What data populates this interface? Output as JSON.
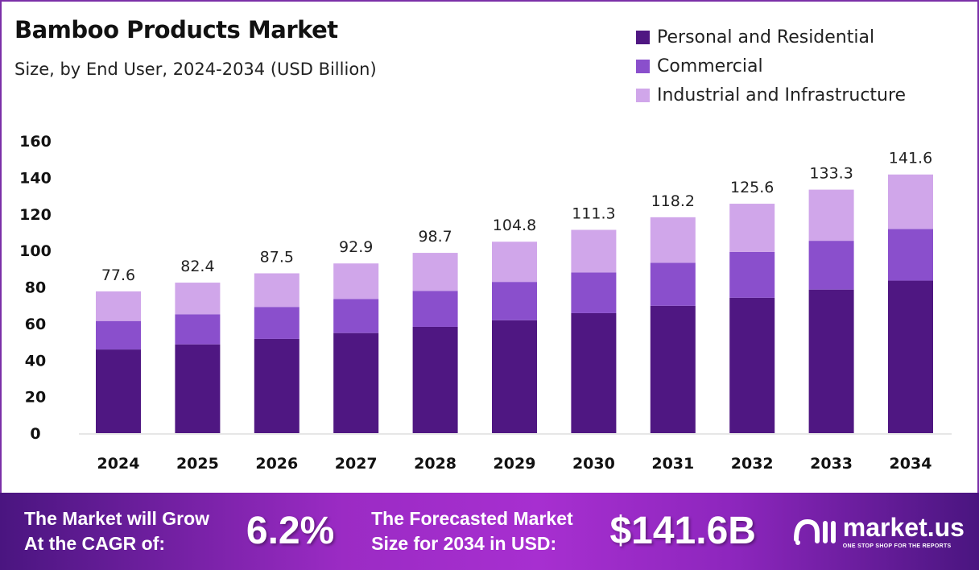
{
  "chart_data": {
    "type": "bar",
    "stacked": true,
    "title": "Bamboo Products Market",
    "subtitle": "Size, by End User, 2024-2034 (USD Billion)",
    "categories": [
      "2024",
      "2025",
      "2026",
      "2027",
      "2028",
      "2029",
      "2030",
      "2031",
      "2032",
      "2033",
      "2034"
    ],
    "series": [
      {
        "name": "Personal and Residential",
        "color": "#4f1782",
        "values": [
          45.8,
          48.6,
          51.6,
          54.8,
          58.2,
          61.8,
          65.7,
          69.7,
          74.1,
          78.6,
          83.5
        ]
      },
      {
        "name": "Commercial",
        "color": "#8a4fcc",
        "values": [
          15.6,
          16.5,
          17.5,
          18.6,
          19.7,
          21.0,
          22.3,
          23.6,
          25.1,
          26.7,
          28.3
        ]
      },
      {
        "name": "Industrial and Infrastructure",
        "color": "#d0a6ea",
        "values": [
          16.2,
          17.3,
          18.4,
          19.5,
          20.8,
          22.0,
          23.3,
          24.9,
          26.4,
          28.0,
          29.8
        ]
      }
    ],
    "totals": [
      "77.6",
      "82.4",
      "87.5",
      "92.9",
      "98.7",
      "104.8",
      "111.3",
      "118.2",
      "125.6",
      "133.3",
      "141.6"
    ],
    "yticks": [
      "0",
      "20",
      "40",
      "60",
      "80",
      "100",
      "120",
      "140",
      "160"
    ],
    "ylim": [
      0,
      160
    ],
    "grid": false,
    "legend": "top-right"
  },
  "footer": {
    "cagr_line1": "The Market will Grow",
    "cagr_line2": "At the CAGR of:",
    "cagr_value": "6.2%",
    "forecast_line1": "The Forecasted Market",
    "forecast_line2": "Size for 2034 in USD:",
    "forecast_value": "$141.6B",
    "logo_text": "market.us",
    "logo_tagline": "ONE STOP SHOP FOR THE REPORTS"
  }
}
